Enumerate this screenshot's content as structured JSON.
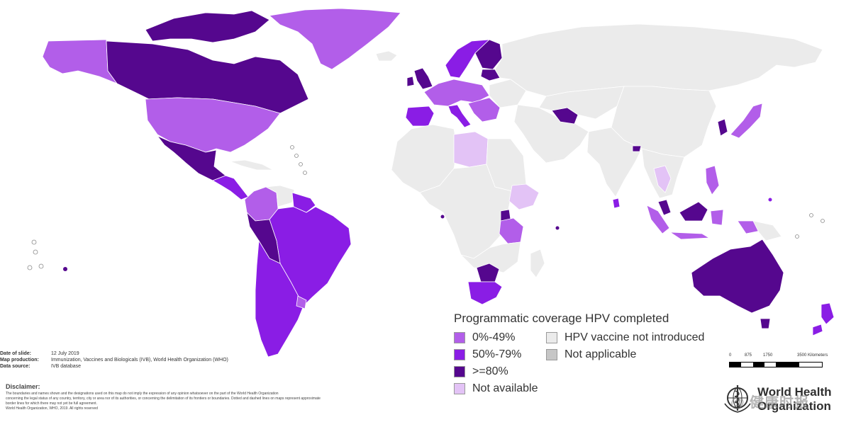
{
  "colors": {
    "cov_0_49": "#b25ee9",
    "cov_50_79": "#8a1de5",
    "cov_80_plus": "#55078e",
    "not_available": "#e3c3f6",
    "not_introduced": "#ebebeb",
    "not_applicable": "#c6c6c6",
    "border": "#ffffff"
  },
  "legend": {
    "title": "Programmatic coverage HPV completed",
    "items": [
      {
        "label": "0%-49%",
        "color": "#b25ee9"
      },
      {
        "label": "HPV vaccine not introduced",
        "color": "#ebebeb"
      },
      {
        "label": "50%-79%",
        "color": "#8a1de5"
      },
      {
        "label": "Not applicable",
        "color": "#c6c6c6"
      },
      {
        "label": ">=80%",
        "color": "#55078e"
      },
      {
        "label": "",
        "color": ""
      },
      {
        "label": "Not available",
        "color": "#e3c3f6"
      },
      {
        "label": "",
        "color": ""
      }
    ]
  },
  "slide_info": {
    "date_label": "Date of slide:",
    "date_value": "12 July 2019",
    "production_label": "Map production:",
    "production_value": "Immunization, Vaccines and Biologicals (IVB), World Health Organization (WHO)",
    "source_label": "Data source:",
    "source_value": "IVB database"
  },
  "disclaimer": {
    "title": "Disclaimer:",
    "lines": [
      "The boundaries and names shown and the designations used on this map do not imply the expression of any opinion whatsoever on the part of the World Health Organization",
      "concerning the legal status of any country, territory, city or area nor of its authorities, or concerning the delimitation of its frontiers or boundaries. Dotted and dashed lines on maps represent approximate",
      "border lines for which there may not yet be full agreement.",
      "World Health Organization, WHO, 2019. All rights reserved"
    ]
  },
  "scale": {
    "ticks": [
      "0",
      "875",
      "1750",
      "3500 Kilometers"
    ]
  },
  "who_logo": {
    "line1": "World Health",
    "line2": "Organization"
  },
  "watermark": "@ 健康时报",
  "regions": [
    {
      "name": "alaska",
      "category": "cov_0_49"
    },
    {
      "name": "canada",
      "category": "cov_80_plus"
    },
    {
      "name": "canadian-arctic-islands",
      "category": "cov_80_plus"
    },
    {
      "name": "greenland",
      "category": "cov_0_49"
    },
    {
      "name": "usa",
      "category": "cov_0_49"
    },
    {
      "name": "mexico",
      "category": "cov_80_plus"
    },
    {
      "name": "central-america",
      "category": "cov_50_79"
    },
    {
      "name": "cuba",
      "category": "not_introduced"
    },
    {
      "name": "colombia",
      "category": "cov_0_49"
    },
    {
      "name": "venezuela",
      "category": "not_introduced"
    },
    {
      "name": "guianas",
      "category": "cov_50_79"
    },
    {
      "name": "brazil-south-america",
      "category": "cov_50_79"
    },
    {
      "name": "peru-bolivia",
      "category": "cov_80_plus"
    },
    {
      "name": "chile-argentina",
      "category": "cov_50_79"
    },
    {
      "name": "uruguay",
      "category": "cov_0_49"
    },
    {
      "name": "iceland",
      "category": "not_introduced"
    },
    {
      "name": "ireland-uk",
      "category": "cov_80_plus"
    },
    {
      "name": "scandinavia",
      "category": "cov_50_79"
    },
    {
      "name": "finland",
      "category": "cov_80_plus"
    },
    {
      "name": "baltics",
      "category": "cov_80_plus"
    },
    {
      "name": "western-europe",
      "category": "cov_0_49"
    },
    {
      "name": "iberia",
      "category": "cov_50_79"
    },
    {
      "name": "italy",
      "category": "cov_50_79"
    },
    {
      "name": "central-europe",
      "category": "not_introduced"
    },
    {
      "name": "balkans",
      "category": "cov_0_49"
    },
    {
      "name": "russia",
      "category": "not_introduced"
    },
    {
      "name": "north-africa-west",
      "category": "not_introduced"
    },
    {
      "name": "libya",
      "category": "not_available"
    },
    {
      "name": "egypt-sudan",
      "category": "not_introduced"
    },
    {
      "name": "west-central-africa",
      "category": "not_introduced"
    },
    {
      "name": "ethiopia",
      "category": "not_available"
    },
    {
      "name": "uganda",
      "category": "cov_80_plus"
    },
    {
      "name": "tanzania",
      "category": "cov_0_49"
    },
    {
      "name": "southern-africa",
      "category": "not_introduced"
    },
    {
      "name": "zimbabwe",
      "category": "cov_80_plus"
    },
    {
      "name": "south-africa",
      "category": "cov_50_79"
    },
    {
      "name": "madagascar",
      "category": "not_introduced"
    },
    {
      "name": "middle-east",
      "category": "not_introduced"
    },
    {
      "name": "turkmenistan",
      "category": "cov_80_plus"
    },
    {
      "name": "central-asia",
      "category": "not_introduced"
    },
    {
      "name": "china-mongolia",
      "category": "not_introduced"
    },
    {
      "name": "india-south-asia",
      "category": "not_introduced"
    },
    {
      "name": "bhutan",
      "category": "cov_80_plus"
    },
    {
      "name": "sri-lanka",
      "category": "cov_50_79"
    },
    {
      "name": "southeast-asia",
      "category": "not_introduced"
    },
    {
      "name": "thailand",
      "category": "not_available"
    },
    {
      "name": "korea",
      "category": "cov_80_plus"
    },
    {
      "name": "japan",
      "category": "cov_0_49"
    },
    {
      "name": "philippines",
      "category": "cov_0_49"
    },
    {
      "name": "malaysia",
      "category": "cov_80_plus"
    },
    {
      "name": "sumatra",
      "category": "cov_0_49"
    },
    {
      "name": "indonesia",
      "category": "cov_0_49"
    },
    {
      "name": "papua",
      "category": "not_introduced"
    },
    {
      "name": "australia",
      "category": "cov_80_plus"
    },
    {
      "name": "tasmania",
      "category": "cov_80_plus"
    },
    {
      "name": "new-zealand",
      "category": "cov_50_79"
    }
  ]
}
